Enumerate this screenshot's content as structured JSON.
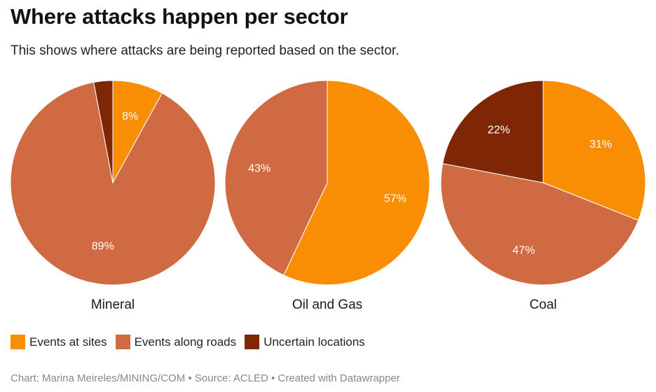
{
  "title": "Where attacks happen per sector",
  "subtitle": "This shows where attacks are being reported based on the sector.",
  "colors": {
    "sites": "#f98d03",
    "roads": "#d06a43",
    "uncertain": "#7f2704"
  },
  "legend": [
    {
      "label": "Events at sites",
      "color": "#f98d03"
    },
    {
      "label": "Events along roads",
      "color": "#d06a43"
    },
    {
      "label": "Uncertain locations",
      "color": "#7f2704"
    }
  ],
  "footer": "Chart: Marina Meireles/MINING/COM • Source: ACLED • Created with Datawrapper",
  "chart_data": [
    {
      "type": "pie",
      "title": "Mineral",
      "slices": [
        {
          "name": "Events at sites",
          "value": 8,
          "label": "8%"
        },
        {
          "name": "Events along roads",
          "value": 89,
          "label": "89%"
        },
        {
          "name": "Uncertain locations",
          "value": 3,
          "label": ""
        }
      ]
    },
    {
      "type": "pie",
      "title": "Oil and Gas",
      "slices": [
        {
          "name": "Events at sites",
          "value": 57,
          "label": "57%"
        },
        {
          "name": "Events along roads",
          "value": 43,
          "label": "43%"
        },
        {
          "name": "Uncertain locations",
          "value": 0,
          "label": ""
        }
      ]
    },
    {
      "type": "pie",
      "title": "Coal",
      "slices": [
        {
          "name": "Events at sites",
          "value": 31,
          "label": "31%"
        },
        {
          "name": "Events along roads",
          "value": 47,
          "label": "47%"
        },
        {
          "name": "Uncertain locations",
          "value": 22,
          "label": "22%"
        }
      ]
    }
  ]
}
